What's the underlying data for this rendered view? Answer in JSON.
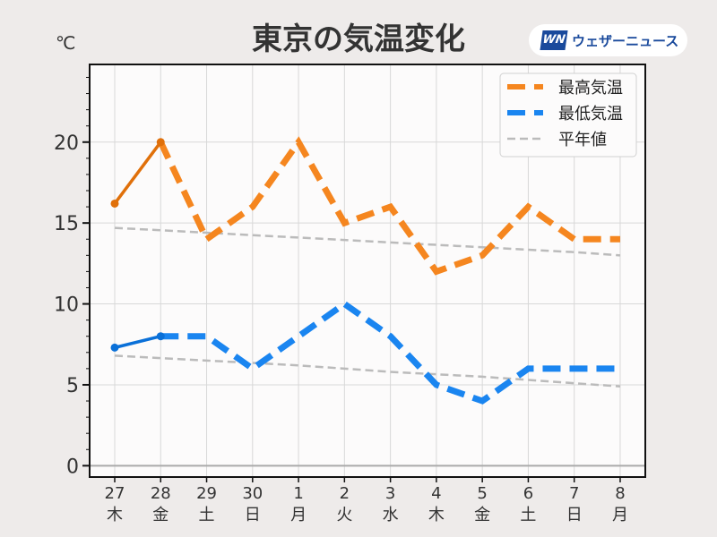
{
  "title": "東京の気温変化",
  "unit": "℃",
  "logo": {
    "mark": "WN",
    "text": "ウェザーニュース"
  },
  "chart_data": {
    "type": "line",
    "title": "東京の気温変化",
    "ylabel": "℃",
    "ylim": [
      -0.7,
      24.8
    ],
    "yticks": [
      0,
      5,
      10,
      15,
      20
    ],
    "grid": true,
    "legend_position": "top-right",
    "categories": [
      {
        "day": "27",
        "dow": "木",
        "color": "#333333"
      },
      {
        "day": "28",
        "dow": "金",
        "color": "#333333"
      },
      {
        "day": "29",
        "dow": "土",
        "color": "#2a8ee0"
      },
      {
        "day": "30",
        "dow": "日",
        "color": "#e03040"
      },
      {
        "day": "1",
        "dow": "月",
        "color": "#333333"
      },
      {
        "day": "2",
        "dow": "火",
        "color": "#333333"
      },
      {
        "day": "3",
        "dow": "水",
        "color": "#333333"
      },
      {
        "day": "4",
        "dow": "木",
        "color": "#333333"
      },
      {
        "day": "5",
        "dow": "金",
        "color": "#333333"
      },
      {
        "day": "6",
        "dow": "土",
        "color": "#2a8ee0"
      },
      {
        "day": "7",
        "dow": "日",
        "color": "#e03040"
      },
      {
        "day": "8",
        "dow": "月",
        "color": "#333333"
      }
    ],
    "observed_until_index": 1,
    "series": [
      {
        "name": "最高気温",
        "color": "#f5861f",
        "observed_color": "#e0700a",
        "values": [
          16.2,
          20,
          14,
          16,
          20,
          15,
          16,
          12,
          13,
          16,
          14,
          14
        ]
      },
      {
        "name": "最低気温",
        "color": "#1a85f0",
        "observed_color": "#0a70d8",
        "values": [
          7.3,
          8,
          8,
          6,
          8,
          10,
          8,
          5,
          4,
          6,
          6,
          6
        ]
      },
      {
        "name": "平年値",
        "color": "#bbbbbb",
        "values": [
          14.7,
          14.55,
          14.4,
          14.25,
          14.1,
          13.95,
          13.8,
          13.65,
          13.5,
          13.35,
          13.2,
          13.0
        ]
      },
      {
        "name": "平年値-low",
        "color": "#bbbbbb",
        "values": [
          6.8,
          6.65,
          6.5,
          6.35,
          6.2,
          6.0,
          5.8,
          5.65,
          5.5,
          5.3,
          5.1,
          4.9
        ]
      }
    ]
  }
}
